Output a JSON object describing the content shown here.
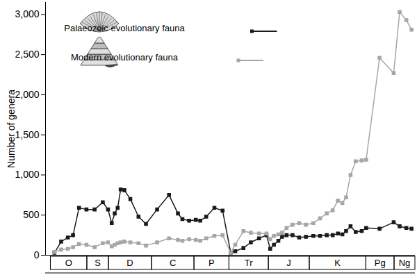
{
  "chart_data": {
    "type": "line",
    "y_label": "Number of genera",
    "x": [
      485,
      476,
      467,
      460,
      452,
      442,
      431,
      420,
      413,
      408,
      404,
      400,
      396,
      391,
      383,
      372,
      362,
      347,
      331,
      319,
      313,
      304,
      295,
      289,
      281,
      270,
      259,
      248,
      242,
      231,
      221,
      210,
      200,
      195,
      190,
      184,
      179,
      173,
      165,
      156,
      147,
      137,
      128,
      119,
      111,
      104,
      98,
      93,
      87,
      80,
      72,
      66,
      48,
      29,
      21,
      12,
      5
    ],
    "series": [
      {
        "name": "Palaeozoic evolutionary fauna",
        "color": "#1a1a1a",
        "marker": "square",
        "line_style": "solid",
        "values": [
          30,
          170,
          220,
          250,
          590,
          570,
          570,
          660,
          570,
          400,
          520,
          590,
          820,
          810,
          700,
          480,
          390,
          570,
          750,
          520,
          450,
          430,
          440,
          430,
          480,
          590,
          555,
          30,
          50,
          90,
          160,
          210,
          250,
          80,
          130,
          180,
          230,
          250,
          250,
          220,
          230,
          240,
          240,
          250,
          250,
          270,
          260,
          300,
          360,
          290,
          300,
          340,
          330,
          410,
          360,
          340,
          330
        ]
      },
      {
        "name": "Modern evolutionary fauna",
        "color": "#a6a6a6",
        "marker": "square",
        "line_style": "solid",
        "values": [
          40,
          70,
          80,
          100,
          140,
          130,
          100,
          150,
          160,
          110,
          130,
          150,
          160,
          170,
          160,
          150,
          120,
          160,
          210,
          190,
          180,
          200,
          190,
          180,
          210,
          240,
          250,
          30,
          130,
          300,
          280,
          270,
          270,
          200,
          240,
          260,
          280,
          340,
          380,
          400,
          380,
          400,
          460,
          520,
          560,
          680,
          650,
          720,
          1000,
          1170,
          1180,
          1190,
          2460,
          2270,
          3030,
          2930,
          2810
        ]
      }
    ],
    "periods": [
      {
        "label": "O",
        "start": 490,
        "end": 441
      },
      {
        "label": "S",
        "start": 441,
        "end": 412
      },
      {
        "label": "D",
        "start": 412,
        "end": 354
      },
      {
        "label": "C",
        "start": 354,
        "end": 297
      },
      {
        "label": "P",
        "start": 297,
        "end": 250
      },
      {
        "label": "Tr",
        "start": 250,
        "end": 197
      },
      {
        "label": "J",
        "start": 197,
        "end": 142
      },
      {
        "label": "K",
        "start": 142,
        "end": 66
      },
      {
        "label": "Pg",
        "start": 66,
        "end": 28
      },
      {
        "label": "Ng",
        "start": 28,
        "end": 0
      }
    ],
    "xlim": [
      497,
      0
    ],
    "ylim": [
      0,
      3150
    ],
    "yticks": [
      0,
      500,
      {
        "value": 1000,
        "label": "1,000"
      },
      {
        "value": 1500,
        "label": "1,500"
      },
      {
        "value": 2000,
        "label": "2,000"
      },
      {
        "value": 2500,
        "label": "2,500"
      },
      {
        "value": 3000,
        "label": "3,000"
      }
    ],
    "tick_labels": "y",
    "grid": false,
    "legend": "top-left"
  }
}
